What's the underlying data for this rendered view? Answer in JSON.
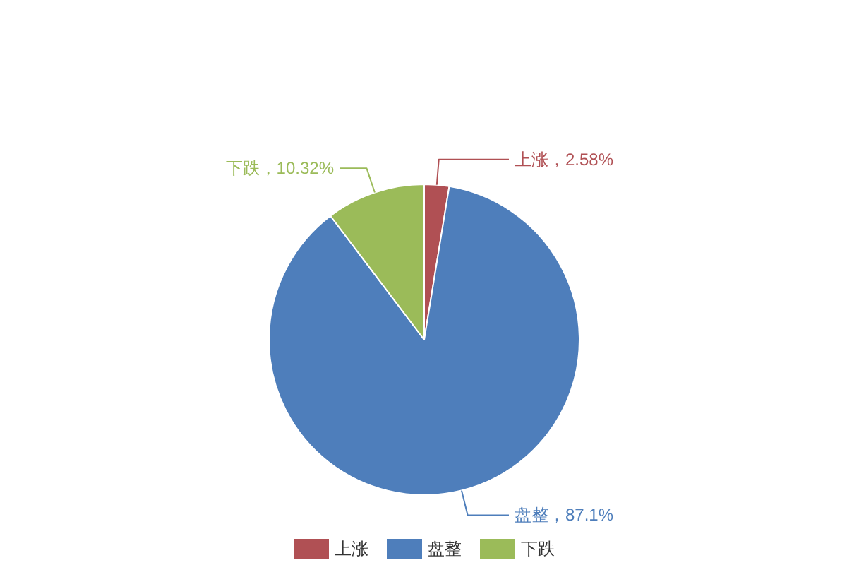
{
  "chart_data": {
    "type": "pie",
    "categories": [
      "上涨",
      "盘整",
      "下跌"
    ],
    "values": [
      2.58,
      87.1,
      10.32
    ],
    "colors": [
      "#b05054",
      "#4e7ebb",
      "#9bbb59"
    ],
    "value_labels": [
      "上涨，2.58%",
      "盘整，87.1%",
      "下跌，10.32%"
    ],
    "legend": "bottom"
  }
}
